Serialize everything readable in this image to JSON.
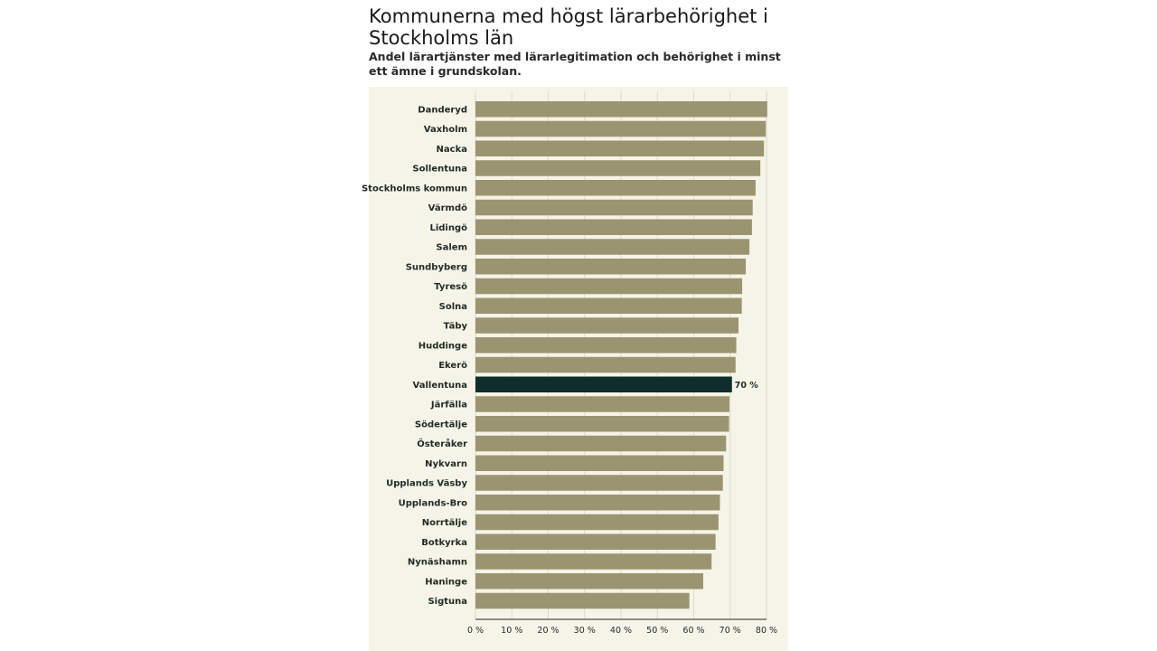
{
  "title": "Kommunerna med högst lärarbehörighet i Stockholms län",
  "subtitle": "Andel lärartjänster med lärarlegitimation och behörighet i minst ett ämne i grundskolan.",
  "colors": {
    "bar": "#9a9570",
    "highlight": "#0e2d2b",
    "panel": "#f6f4e8",
    "grid": "#dcd9c8"
  },
  "chart_data": {
    "type": "bar",
    "orientation": "horizontal",
    "title": "Kommunerna med högst lärarbehörighet i Stockholms län",
    "subtitle": "Andel lärartjänster med lärarlegitimation och behörighet i minst ett ämne i grundskolan.",
    "categories": [
      "Danderyd",
      "Vaxholm",
      "Nacka",
      "Sollentuna",
      "Stockholms kommun",
      "Värmdö",
      "Lidingö",
      "Salem",
      "Sundbyberg",
      "Tyresö",
      "Solna",
      "Täby",
      "Huddinge",
      "Ekerö",
      "Vallentuna",
      "Järfälla",
      "Södertälje",
      "Österåker",
      "Nykvarn",
      "Upplands Väsby",
      "Upplands-Bro",
      "Norrtälje",
      "Botkyrka",
      "Nynäshamn",
      "Haninge",
      "Sigtuna"
    ],
    "values": [
      80.2,
      79.8,
      79.3,
      78.3,
      77.0,
      76.2,
      76.0,
      75.3,
      74.3,
      73.3,
      73.2,
      72.3,
      71.7,
      71.5,
      70.5,
      69.8,
      69.7,
      68.9,
      68.2,
      68.0,
      67.2,
      66.8,
      66.0,
      64.9,
      62.6,
      58.8
    ],
    "highlight": "Vallentuna",
    "highlight_label": "70 %",
    "x_ticks": [
      "0 %",
      "10 %",
      "20 %",
      "30 %",
      "40 %",
      "50 %",
      "60 %",
      "70 %",
      "80 %"
    ],
    "xlim": [
      0,
      80
    ],
    "xlabel": "",
    "ylabel": ""
  }
}
